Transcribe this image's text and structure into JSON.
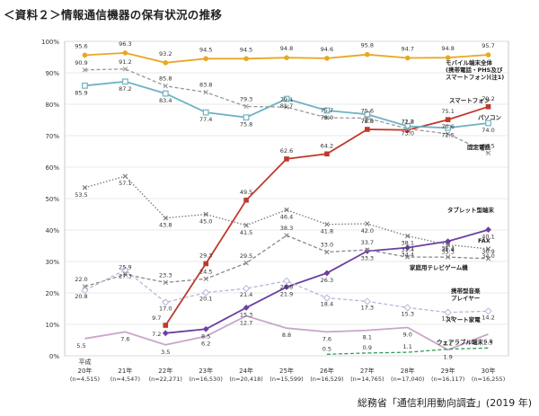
{
  "page": {
    "title": "＜資料２＞情報通信機器の保有状況の推移",
    "source": "総務省「通信利用動向調査」(2019 年)"
  },
  "chart_data": {
    "type": "line",
    "title": "＜資料２＞情報通信機器の保有状況の推移",
    "ylim": [
      0,
      100
    ],
    "yticks": [
      "0%",
      "10%",
      "20%",
      "30%",
      "40%",
      "50%",
      "60%",
      "70%",
      "80%",
      "90%",
      "100%"
    ],
    "x_era_label": "平成",
    "x": [
      "20年",
      "21年",
      "22年",
      "23年",
      "24年",
      "25年",
      "26年",
      "27年",
      "28年",
      "29年",
      "30年"
    ],
    "x_n": [
      "(n=4,515)",
      "(n=4,547)",
      "(n=22,271)",
      "(n=16,530)",
      "(n=20,418)",
      "(n=15,599)",
      "(n=16,529)",
      "(n=14,765)",
      "(n=17,040)",
      "(n=16,117)",
      "(n=16,255)"
    ],
    "grid": true,
    "series": [
      {
        "name": "モバイル端末全体",
        "name_lines": [
          "モバイル端末全体",
          "(携帯電話・PHS及び",
          "スマートフォン)(注1)"
        ],
        "color": "#e8a820",
        "style": "solid",
        "marker": "circle",
        "values": [
          95.6,
          96.3,
          93.2,
          94.5,
          94.5,
          94.8,
          94.6,
          95.8,
          94.7,
          94.8,
          95.7
        ]
      },
      {
        "name": "スマートフォン",
        "color": "#c0392b",
        "style": "solid",
        "marker": "square",
        "values": [
          null,
          null,
          9.7,
          29.3,
          49.5,
          62.6,
          64.2,
          72.0,
          71.8,
          75.1,
          79.2
        ]
      },
      {
        "name": "パソコン",
        "color": "#6fb3c3",
        "style": "solid",
        "marker": "square-open",
        "values": [
          85.9,
          87.2,
          83.4,
          77.4,
          75.8,
          81.7,
          78.0,
          76.8,
          73.0,
          72.5,
          74.0
        ]
      },
      {
        "name": "固定電話",
        "color": "#999999",
        "style": "dashed",
        "marker": "x",
        "values": [
          90.9,
          91.2,
          85.8,
          83.8,
          79.3,
          79.1,
          75.7,
          75.6,
          72.2,
          70.6,
          64.5
        ]
      },
      {
        "name": "タブレット型端末",
        "color": "#6b3fa0",
        "style": "solid",
        "marker": "diamond",
        "values": [
          null,
          null,
          7.2,
          8.5,
          15.3,
          21.9,
          26.3,
          33.3,
          34.4,
          36.4,
          40.1
        ]
      },
      {
        "name": "FAX",
        "color": "#777777",
        "style": "dotted",
        "marker": "x",
        "values": [
          53.5,
          57.1,
          43.8,
          45.0,
          41.5,
          46.4,
          41.8,
          42.0,
          38.1,
          35.3,
          34.0
        ]
      },
      {
        "name": "家庭用テレビゲーム機",
        "color": "#888888",
        "style": "dashed",
        "marker": "x",
        "values": [
          22.0,
          25.9,
          23.3,
          24.5,
          29.5,
          38.3,
          33.0,
          33.7,
          31.4,
          31.4,
          30.9
        ]
      },
      {
        "name": "携帯型音楽プレイヤー",
        "name_lines": [
          "携帯型音楽",
          "プレイヤー"
        ],
        "color": "#b6b6d8",
        "style": "dashed",
        "marker": "diamond-open",
        "values": [
          20.8,
          27.3,
          17.0,
          20.1,
          21.4,
          23.8,
          18.4,
          17.3,
          15.3,
          13.8,
          14.2
        ]
      },
      {
        "name": "スマート家電",
        "color": "#c8a6c8",
        "style": "solid",
        "marker": "none",
        "values": [
          5.5,
          7.6,
          3.5,
          6.2,
          12.7,
          8.8,
          7.6,
          8.1,
          9.0,
          1.9,
          6.9
        ]
      },
      {
        "name": "ウェアラブル端末",
        "color": "#2e9e5a",
        "style": "dashed",
        "marker": "none",
        "values": [
          null,
          null,
          null,
          null,
          null,
          null,
          0.5,
          0.9,
          1.1,
          2.1,
          2.5
        ]
      }
    ],
    "data_labels": [
      {
        "s": 0,
        "i": 0,
        "t": "95.6"
      },
      {
        "s": 0,
        "i": 1,
        "t": "96.3"
      },
      {
        "s": 0,
        "i": 2,
        "t": "93.2"
      },
      {
        "s": 0,
        "i": 3,
        "t": "94.5"
      },
      {
        "s": 0,
        "i": 4,
        "t": "94.5"
      },
      {
        "s": 0,
        "i": 5,
        "t": "94.8"
      },
      {
        "s": 0,
        "i": 6,
        "t": "94.6"
      },
      {
        "s": 0,
        "i": 7,
        "t": "95.8"
      },
      {
        "s": 0,
        "i": 8,
        "t": "94.7"
      },
      {
        "s": 0,
        "i": 9,
        "t": "94.8"
      },
      {
        "s": 0,
        "i": 10,
        "t": "95.7"
      },
      {
        "s": 1,
        "i": 2,
        "t": "9.7"
      },
      {
        "s": 1,
        "i": 3,
        "t": "29.3"
      },
      {
        "s": 1,
        "i": 4,
        "t": "49.5"
      },
      {
        "s": 1,
        "i": 5,
        "t": "62.6"
      },
      {
        "s": 1,
        "i": 6,
        "t": "64.2"
      },
      {
        "s": 1,
        "i": 7,
        "t": "72.0"
      },
      {
        "s": 1,
        "i": 8,
        "t": "71.8"
      },
      {
        "s": 1,
        "i": 9,
        "t": "75.1"
      },
      {
        "s": 1,
        "i": 10,
        "t": "79.2"
      },
      {
        "s": 2,
        "i": 0,
        "t": "85.9"
      },
      {
        "s": 2,
        "i": 1,
        "t": "87.2"
      },
      {
        "s": 2,
        "i": 2,
        "t": "83.4"
      },
      {
        "s": 2,
        "i": 3,
        "t": "77.4"
      },
      {
        "s": 2,
        "i": 4,
        "t": "75.8"
      },
      {
        "s": 2,
        "i": 5,
        "t": "81.7"
      },
      {
        "s": 2,
        "i": 6,
        "t": "78.0"
      },
      {
        "s": 2,
        "i": 7,
        "t": "76.8"
      },
      {
        "s": 2,
        "i": 8,
        "t": "73.0"
      },
      {
        "s": 2,
        "i": 9,
        "t": "72.5"
      },
      {
        "s": 2,
        "i": 10,
        "t": "74.0"
      },
      {
        "s": 3,
        "i": 0,
        "t": "90.9"
      },
      {
        "s": 3,
        "i": 1,
        "t": "91.2"
      },
      {
        "s": 3,
        "i": 2,
        "t": "85.8"
      },
      {
        "s": 3,
        "i": 3,
        "t": "83.8"
      },
      {
        "s": 3,
        "i": 4,
        "t": "79.3"
      },
      {
        "s": 3,
        "i": 5,
        "t": "79.1"
      },
      {
        "s": 3,
        "i": 6,
        "t": "75.7"
      },
      {
        "s": 3,
        "i": 7,
        "t": "75.6"
      },
      {
        "s": 3,
        "i": 8,
        "t": "72.2"
      },
      {
        "s": 3,
        "i": 9,
        "t": "70.6"
      },
      {
        "s": 3,
        "i": 10,
        "t": "64.5"
      },
      {
        "s": 4,
        "i": 2,
        "t": "7.2"
      },
      {
        "s": 4,
        "i": 3,
        "t": "8.5"
      },
      {
        "s": 4,
        "i": 4,
        "t": "15.3"
      },
      {
        "s": 4,
        "i": 5,
        "t": "21.9"
      },
      {
        "s": 4,
        "i": 6,
        "t": "26.3"
      },
      {
        "s": 4,
        "i": 7,
        "t": "33.3"
      },
      {
        "s": 4,
        "i": 8,
        "t": "34.4"
      },
      {
        "s": 4,
        "i": 9,
        "t": "36.4"
      },
      {
        "s": 4,
        "i": 10,
        "t": "40.1"
      },
      {
        "s": 5,
        "i": 0,
        "t": "53.5"
      },
      {
        "s": 5,
        "i": 1,
        "t": "57.1"
      },
      {
        "s": 5,
        "i": 2,
        "t": "43.8"
      },
      {
        "s": 5,
        "i": 3,
        "t": "45.0"
      },
      {
        "s": 5,
        "i": 4,
        "t": "41.5"
      },
      {
        "s": 5,
        "i": 5,
        "t": "46.4"
      },
      {
        "s": 5,
        "i": 6,
        "t": "41.8"
      },
      {
        "s": 5,
        "i": 7,
        "t": "42.0"
      },
      {
        "s": 5,
        "i": 8,
        "t": "38.1"
      },
      {
        "s": 5,
        "i": 9,
        "t": "35.3"
      },
      {
        "s": 5,
        "i": 10,
        "t": "34.0"
      },
      {
        "s": 6,
        "i": 0,
        "t": "22.0"
      },
      {
        "s": 6,
        "i": 1,
        "t": "25.9"
      },
      {
        "s": 6,
        "i": 2,
        "t": "23.3"
      },
      {
        "s": 6,
        "i": 3,
        "t": "24.5"
      },
      {
        "s": 6,
        "i": 4,
        "t": "29.5"
      },
      {
        "s": 6,
        "i": 5,
        "t": "38.3"
      },
      {
        "s": 6,
        "i": 6,
        "t": "33.0"
      },
      {
        "s": 6,
        "i": 7,
        "t": "33.7"
      },
      {
        "s": 6,
        "i": 8,
        "t": "31.4"
      },
      {
        "s": 6,
        "i": 9,
        "t": "31.4"
      },
      {
        "s": 6,
        "i": 10,
        "t": "30.9"
      },
      {
        "s": 7,
        "i": 0,
        "t": "20.8"
      },
      {
        "s": 7,
        "i": 1,
        "t": "27.3"
      },
      {
        "s": 7,
        "i": 2,
        "t": "17.0"
      },
      {
        "s": 7,
        "i": 3,
        "t": "20.1"
      },
      {
        "s": 7,
        "i": 4,
        "t": "21.4"
      },
      {
        "s": 7,
        "i": 5,
        "t": "23.8"
      },
      {
        "s": 7,
        "i": 6,
        "t": "18.4"
      },
      {
        "s": 7,
        "i": 7,
        "t": "17.3"
      },
      {
        "s": 7,
        "i": 8,
        "t": "15.3"
      },
      {
        "s": 7,
        "i": 9,
        "t": "13.8"
      },
      {
        "s": 7,
        "i": 10,
        "t": "14.2"
      },
      {
        "s": 8,
        "i": 0,
        "t": "5.5"
      },
      {
        "s": 8,
        "i": 1,
        "t": "7.6"
      },
      {
        "s": 8,
        "i": 2,
        "t": "3.5"
      },
      {
        "s": 8,
        "i": 3,
        "t": "6.2"
      },
      {
        "s": 8,
        "i": 4,
        "t": "12.7"
      },
      {
        "s": 8,
        "i": 5,
        "t": "8.8"
      },
      {
        "s": 8,
        "i": 6,
        "t": "7.6"
      },
      {
        "s": 8,
        "i": 7,
        "t": "8.1"
      },
      {
        "s": 8,
        "i": 8,
        "t": "9.0"
      },
      {
        "s": 8,
        "i": 9,
        "t": "1.9"
      },
      {
        "s": 8,
        "i": 10,
        "t": "6.9"
      },
      {
        "s": 9,
        "i": 6,
        "t": "0.5"
      },
      {
        "s": 9,
        "i": 7,
        "t": "0.9"
      },
      {
        "s": 9,
        "i": 8,
        "t": "1.1"
      },
      {
        "s": 9,
        "i": 9,
        "t": "2.1"
      },
      {
        "s": 9,
        "i": 10,
        "t": "2.5"
      }
    ]
  }
}
